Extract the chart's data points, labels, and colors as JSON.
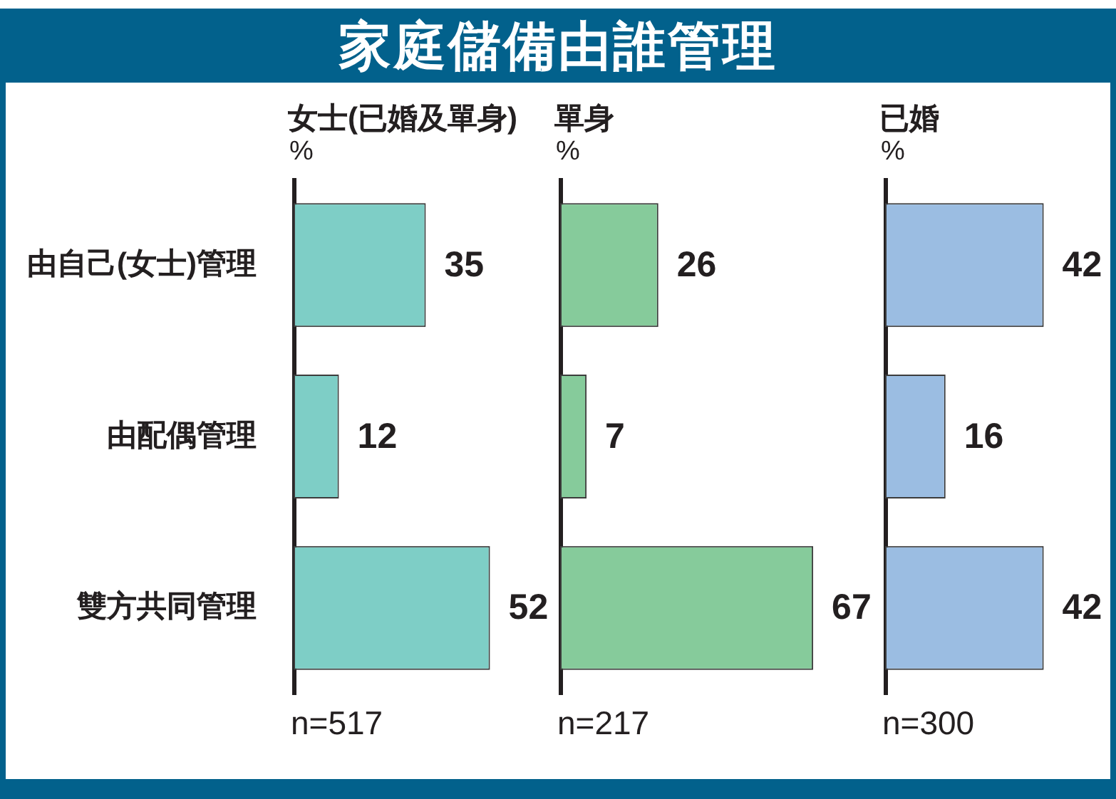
{
  "chart_data": [
    {
      "type": "bar",
      "orientation": "horizontal",
      "title": "家庭儲備由誰管理",
      "subtitle": "女士(已婚及單身)",
      "xlabel": "%",
      "categories": [
        "由自己(女士)管理",
        "由配偶管理",
        "雙方共同管理"
      ],
      "values": [
        35,
        12,
        52
      ],
      "color": "#7ecec6",
      "data_labels": true,
      "tick_labels": "y",
      "annotations": [
        "n=517"
      ]
    },
    {
      "type": "bar",
      "orientation": "horizontal",
      "subtitle": "單身",
      "xlabel": "%",
      "categories": [
        null,
        null,
        null
      ],
      "values": [
        26,
        7,
        67
      ],
      "color": "#86cb9b",
      "data_labels": true,
      "tick_labels": false,
      "annotations": [
        "n=217"
      ]
    },
    {
      "type": "bar",
      "orientation": "horizontal",
      "subtitle": "已婚",
      "xlabel": "%",
      "categories": [
        null,
        null,
        null
      ],
      "values": [
        42,
        16,
        42
      ],
      "color": "#9bbde2",
      "data_labels": true,
      "tick_labels": false,
      "annotations": [
        "n=300"
      ]
    }
  ]
}
